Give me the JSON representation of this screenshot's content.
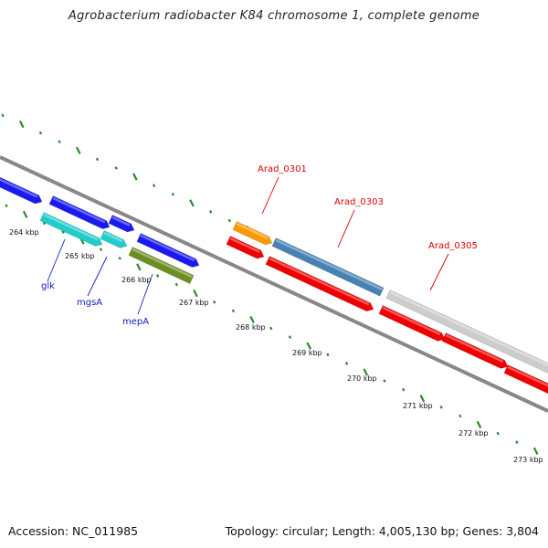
{
  "title": "Agrobacterium radiobacter K84 chromosome 1, complete genome",
  "footer": {
    "accession": "Accession: NC_011985",
    "summary": "Topology: circular; Length: 4,005,130 bp; Genes: 3,804"
  },
  "colors": {
    "tick": "#2a8a2a",
    "backbone": "#888888",
    "label_red": "#dd0000",
    "label_blue": "#1020c0"
  },
  "kbp_ticks": [
    "264 kbp",
    "265 kbp",
    "266 kbp",
    "267 kbp",
    "268 kbp",
    "269 kbp",
    "270 kbp",
    "271 kbp",
    "272 kbp",
    "273 kbp"
  ],
  "gene_labels": [
    {
      "text": "Arad_0301",
      "color": "red"
    },
    {
      "text": "Arad_0303",
      "color": "red"
    },
    {
      "text": "Arad_0305",
      "color": "red"
    },
    {
      "text": "glk",
      "color": "blue"
    },
    {
      "text": "mgsA",
      "color": "blue"
    },
    {
      "text": "mepA",
      "color": "blue"
    }
  ],
  "genes": [
    {
      "color": "#1a1aee",
      "strand": "plus"
    },
    {
      "color": "#1a1aee",
      "strand": "plus"
    },
    {
      "color": "#1a1aee",
      "strand": "plus"
    },
    {
      "color": "#1a1aee",
      "strand": "plus"
    },
    {
      "color": "#22cccc",
      "strand": "minus"
    },
    {
      "color": "#22cccc",
      "strand": "minus"
    },
    {
      "color": "#6b8e23",
      "strand": "minus"
    },
    {
      "color": "#ff9900",
      "strand": "plus"
    },
    {
      "color": "#4682b4",
      "strand": "plus"
    },
    {
      "color": "#ee0000",
      "strand": "minus"
    },
    {
      "color": "#ee0000",
      "strand": "minus"
    },
    {
      "color": "#ee0000",
      "strand": "minus"
    },
    {
      "color": "#ee0000",
      "strand": "minus"
    },
    {
      "color": "#ee0000",
      "strand": "minus"
    },
    {
      "color": "#cccccc",
      "strand": "plus"
    }
  ]
}
